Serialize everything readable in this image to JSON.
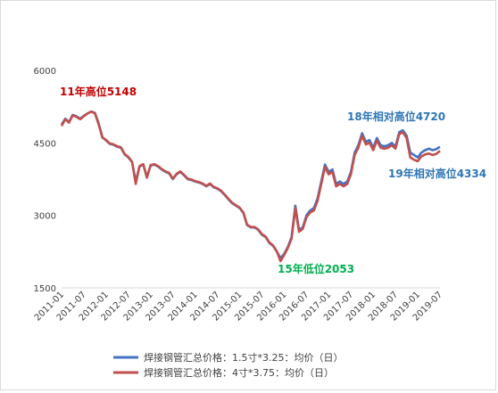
{
  "chart_data": {
    "type": "line",
    "title": "",
    "xlabel": "",
    "ylabel": "",
    "ylim": [
      1500,
      6000
    ],
    "yticks": [
      1500,
      3000,
      4500,
      6000
    ],
    "x_ticks": [
      "2011-01",
      "2011-07",
      "2012-01",
      "2012-07",
      "2013-01",
      "2013-07",
      "2014-01",
      "2014-07",
      "2015-01",
      "2015-07",
      "2016-01",
      "2016-07",
      "2017-01",
      "2017-07",
      "2018-01",
      "2018-07",
      "2019-01",
      "2019-07"
    ],
    "grid": false,
    "legend_position": "bottom",
    "series": [
      {
        "name": "焊接钢管汇总价格：1.5寸*3.25：均价（日）",
        "color": "#4472c4",
        "points": [
          [
            "2011-01",
            4880
          ],
          [
            "2011-02",
            5000
          ],
          [
            "2011-03",
            4930
          ],
          [
            "2011-04",
            5080
          ],
          [
            "2011-05",
            5050
          ],
          [
            "2011-06",
            5000
          ],
          [
            "2011-07",
            5060
          ],
          [
            "2011-08",
            5110
          ],
          [
            "2011-09",
            5150
          ],
          [
            "2011-10",
            5120
          ],
          [
            "2011-11",
            4900
          ],
          [
            "2011-12",
            4620
          ],
          [
            "2012-01",
            4550
          ],
          [
            "2012-02",
            4480
          ],
          [
            "2012-03",
            4460
          ],
          [
            "2012-04",
            4420
          ],
          [
            "2012-05",
            4400
          ],
          [
            "2012-06",
            4260
          ],
          [
            "2012-07",
            4200
          ],
          [
            "2012-08",
            4100
          ],
          [
            "2012-09",
            3700
          ],
          [
            "2012-10",
            4010
          ],
          [
            "2012-11",
            4050
          ],
          [
            "2012-12",
            3800
          ],
          [
            "2013-01",
            4030
          ],
          [
            "2013-02",
            4050
          ],
          [
            "2013-03",
            4010
          ],
          [
            "2013-04",
            3950
          ],
          [
            "2013-05",
            3900
          ],
          [
            "2013-06",
            3870
          ],
          [
            "2013-07",
            3750
          ],
          [
            "2013-08",
            3850
          ],
          [
            "2013-09",
            3900
          ],
          [
            "2013-10",
            3830
          ],
          [
            "2013-11",
            3750
          ],
          [
            "2013-12",
            3730
          ],
          [
            "2014-01",
            3700
          ],
          [
            "2014-02",
            3680
          ],
          [
            "2014-03",
            3650
          ],
          [
            "2014-04",
            3600
          ],
          [
            "2014-05",
            3650
          ],
          [
            "2014-06",
            3580
          ],
          [
            "2014-07",
            3550
          ],
          [
            "2014-08",
            3500
          ],
          [
            "2014-09",
            3420
          ],
          [
            "2014-10",
            3330
          ],
          [
            "2014-11",
            3250
          ],
          [
            "2014-12",
            3200
          ],
          [
            "2015-01",
            3150
          ],
          [
            "2015-02",
            3050
          ],
          [
            "2015-03",
            2800
          ],
          [
            "2015-04",
            2750
          ],
          [
            "2015-05",
            2750
          ],
          [
            "2015-06",
            2700
          ],
          [
            "2015-07",
            2600
          ],
          [
            "2015-08",
            2550
          ],
          [
            "2015-09",
            2430
          ],
          [
            "2015-10",
            2370
          ],
          [
            "2015-11",
            2250
          ],
          [
            "2015-12",
            2120
          ],
          [
            "2016-01",
            2200
          ],
          [
            "2016-02",
            2350
          ],
          [
            "2016-03",
            2550
          ],
          [
            "2016-04",
            3200
          ],
          [
            "2016-05",
            2700
          ],
          [
            "2016-06",
            2750
          ],
          [
            "2016-07",
            3000
          ],
          [
            "2016-08",
            3100
          ],
          [
            "2016-09",
            3150
          ],
          [
            "2016-10",
            3350
          ],
          [
            "2016-11",
            3700
          ],
          [
            "2016-12",
            4050
          ],
          [
            "2017-01",
            3900
          ],
          [
            "2017-02",
            3950
          ],
          [
            "2017-03",
            3650
          ],
          [
            "2017-04",
            3700
          ],
          [
            "2017-05",
            3650
          ],
          [
            "2017-06",
            3700
          ],
          [
            "2017-07",
            3900
          ],
          [
            "2017-08",
            4300
          ],
          [
            "2017-09",
            4450
          ],
          [
            "2017-10",
            4700
          ],
          [
            "2017-11",
            4520
          ],
          [
            "2017-12",
            4560
          ],
          [
            "2018-01",
            4400
          ],
          [
            "2018-02",
            4600
          ],
          [
            "2018-03",
            4450
          ],
          [
            "2018-04",
            4430
          ],
          [
            "2018-05",
            4450
          ],
          [
            "2018-06",
            4500
          ],
          [
            "2018-07",
            4420
          ],
          [
            "2018-08",
            4720
          ],
          [
            "2018-09",
            4760
          ],
          [
            "2018-10",
            4650
          ],
          [
            "2018-11",
            4300
          ],
          [
            "2018-12",
            4250
          ],
          [
            "2019-01",
            4200
          ],
          [
            "2019-02",
            4300
          ],
          [
            "2019-03",
            4350
          ],
          [
            "2019-04",
            4380
          ],
          [
            "2019-05",
            4350
          ],
          [
            "2019-06",
            4370
          ],
          [
            "2019-07",
            4420
          ]
        ]
      },
      {
        "name": "焊接钢管汇总价格：4寸*3.75：均价（日）",
        "color": "#c0504d",
        "points": [
          [
            "2011-01",
            4850
          ],
          [
            "2011-02",
            4990
          ],
          [
            "2011-03",
            4920
          ],
          [
            "2011-04",
            5070
          ],
          [
            "2011-05",
            5040
          ],
          [
            "2011-06",
            4990
          ],
          [
            "2011-07",
            5050
          ],
          [
            "2011-08",
            5110
          ],
          [
            "2011-09",
            5148
          ],
          [
            "2011-10",
            5110
          ],
          [
            "2011-11",
            4880
          ],
          [
            "2011-12",
            4610
          ],
          [
            "2012-01",
            4560
          ],
          [
            "2012-02",
            4490
          ],
          [
            "2012-03",
            4470
          ],
          [
            "2012-04",
            4430
          ],
          [
            "2012-05",
            4410
          ],
          [
            "2012-06",
            4270
          ],
          [
            "2012-07",
            4210
          ],
          [
            "2012-08",
            4110
          ],
          [
            "2012-09",
            3650
          ],
          [
            "2012-10",
            4020
          ],
          [
            "2012-11",
            4060
          ],
          [
            "2012-12",
            3780
          ],
          [
            "2013-01",
            4040
          ],
          [
            "2013-02",
            4060
          ],
          [
            "2013-03",
            4020
          ],
          [
            "2013-04",
            3960
          ],
          [
            "2013-05",
            3910
          ],
          [
            "2013-06",
            3880
          ],
          [
            "2013-07",
            3760
          ],
          [
            "2013-08",
            3860
          ],
          [
            "2013-09",
            3910
          ],
          [
            "2013-10",
            3840
          ],
          [
            "2013-11",
            3760
          ],
          [
            "2013-12",
            3740
          ],
          [
            "2014-01",
            3710
          ],
          [
            "2014-02",
            3690
          ],
          [
            "2014-03",
            3660
          ],
          [
            "2014-04",
            3610
          ],
          [
            "2014-05",
            3660
          ],
          [
            "2014-06",
            3590
          ],
          [
            "2014-07",
            3560
          ],
          [
            "2014-08",
            3510
          ],
          [
            "2014-09",
            3430
          ],
          [
            "2014-10",
            3340
          ],
          [
            "2014-11",
            3260
          ],
          [
            "2014-12",
            3210
          ],
          [
            "2015-01",
            3160
          ],
          [
            "2015-02",
            3060
          ],
          [
            "2015-03",
            2810
          ],
          [
            "2015-04",
            2760
          ],
          [
            "2015-05",
            2760
          ],
          [
            "2015-06",
            2710
          ],
          [
            "2015-07",
            2610
          ],
          [
            "2015-08",
            2560
          ],
          [
            "2015-09",
            2440
          ],
          [
            "2015-10",
            2380
          ],
          [
            "2015-11",
            2260
          ],
          [
            "2015-12",
            2053
          ],
          [
            "2016-01",
            2180
          ],
          [
            "2016-02",
            2330
          ],
          [
            "2016-03",
            2520
          ],
          [
            "2016-04",
            3150
          ],
          [
            "2016-05",
            2660
          ],
          [
            "2016-06",
            2720
          ],
          [
            "2016-07",
            2960
          ],
          [
            "2016-08",
            3060
          ],
          [
            "2016-09",
            3100
          ],
          [
            "2016-10",
            3300
          ],
          [
            "2016-11",
            3650
          ],
          [
            "2016-12",
            4000
          ],
          [
            "2017-01",
            3850
          ],
          [
            "2017-02",
            3900
          ],
          [
            "2017-03",
            3600
          ],
          [
            "2017-04",
            3650
          ],
          [
            "2017-05",
            3600
          ],
          [
            "2017-06",
            3650
          ],
          [
            "2017-07",
            3850
          ],
          [
            "2017-08",
            4250
          ],
          [
            "2017-09",
            4400
          ],
          [
            "2017-10",
            4650
          ],
          [
            "2017-11",
            4470
          ],
          [
            "2017-12",
            4500
          ],
          [
            "2018-01",
            4350
          ],
          [
            "2018-02",
            4550
          ],
          [
            "2018-03",
            4400
          ],
          [
            "2018-04",
            4380
          ],
          [
            "2018-05",
            4400
          ],
          [
            "2018-06",
            4450
          ],
          [
            "2018-07",
            4380
          ],
          [
            "2018-08",
            4680
          ],
          [
            "2018-09",
            4720
          ],
          [
            "2018-10",
            4600
          ],
          [
            "2018-11",
            4200
          ],
          [
            "2018-12",
            4150
          ],
          [
            "2019-01",
            4120
          ],
          [
            "2019-02",
            4220
          ],
          [
            "2019-03",
            4260
          ],
          [
            "2019-04",
            4280
          ],
          [
            "2019-05",
            4250
          ],
          [
            "2019-06",
            4270
          ],
          [
            "2019-07",
            4334
          ]
        ]
      }
    ],
    "annotations": [
      {
        "text": "11年高位5148",
        "color": "#c00000"
      },
      {
        "text": "15年低位2053",
        "color": "#00b050"
      },
      {
        "text": "18年相对高位4720",
        "color": "#2e75b6"
      },
      {
        "text": "19年相对高位4334",
        "color": "#2e75b6"
      }
    ]
  }
}
